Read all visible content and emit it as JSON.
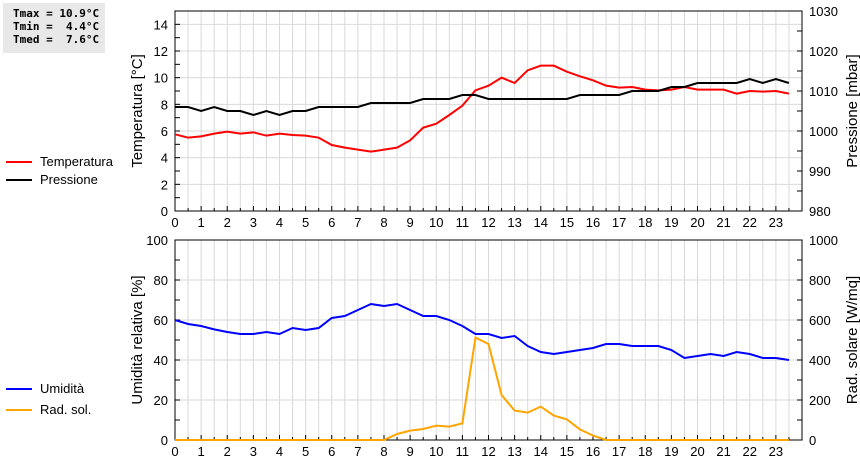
{
  "stats": {
    "tmax": "Tmax = 10.9°C",
    "tmin": "Tmin =  4.4°C",
    "tmed": "Tmed =  7.6°C"
  },
  "chart_data": [
    {
      "type": "line",
      "x": [
        0,
        0.5,
        1,
        1.5,
        2,
        2.5,
        3,
        3.5,
        4,
        4.5,
        5,
        5.5,
        6,
        6.5,
        7,
        7.5,
        8,
        8.5,
        9,
        9.5,
        10,
        10.5,
        11,
        11.5,
        12,
        12.5,
        13,
        13.5,
        14,
        14.5,
        15,
        15.5,
        16,
        16.5,
        17,
        17.5,
        18,
        18.5,
        19,
        19.5,
        20,
        20.5,
        21,
        21.5,
        22,
        22.5,
        23,
        23.5
      ],
      "xticks": [
        "0",
        "1",
        "2",
        "3",
        "4",
        "5",
        "6",
        "7",
        "8",
        "9",
        "10",
        "11",
        "12",
        "13",
        "14",
        "15",
        "16",
        "17",
        "18",
        "19",
        "20",
        "21",
        "22",
        "23"
      ],
      "xlim": [
        0,
        24
      ],
      "ylabel": "Temperatura [°C]",
      "ylim": [
        0,
        15
      ],
      "yticks": [
        "0",
        "2",
        "4",
        "6",
        "8",
        "10",
        "12",
        "14"
      ],
      "y2label": "Pressione [mbar]",
      "y2lim": [
        980,
        1030
      ],
      "y2ticks": [
        "980",
        "990",
        "1000",
        "1010",
        "1020",
        "1030"
      ],
      "grid": true,
      "legend": "left",
      "series": [
        {
          "name": "Temperatura",
          "axis": "left",
          "color": "#ff0000",
          "values": [
            5.75,
            5.5,
            5.6,
            5.8,
            5.95,
            5.8,
            5.9,
            5.65,
            5.8,
            5.7,
            5.65,
            5.5,
            4.95,
            4.75,
            4.6,
            4.45,
            4.6,
            4.75,
            5.3,
            6.25,
            6.55,
            7.2,
            7.9,
            9.05,
            9.4,
            10.0,
            9.6,
            10.55,
            10.9,
            10.9,
            10.45,
            10.1,
            9.8,
            9.4,
            9.25,
            9.3,
            9.1,
            9.05,
            9.1,
            9.3,
            9.1,
            9.1,
            9.1,
            8.8,
            9.0,
            8.95,
            9.0,
            8.8
          ]
        },
        {
          "name": "Pressione",
          "axis": "right",
          "color": "#000000",
          "values": [
            1006,
            1006,
            1005,
            1006,
            1005,
            1005,
            1004,
            1005,
            1004,
            1005,
            1005,
            1006,
            1006,
            1006,
            1006,
            1007,
            1007,
            1007,
            1007,
            1008,
            1008,
            1008,
            1009,
            1009,
            1008,
            1008,
            1008,
            1008,
            1008,
            1008,
            1008,
            1009,
            1009,
            1009,
            1009,
            1010,
            1010,
            1010,
            1011,
            1011,
            1012,
            1012,
            1012,
            1012,
            1013,
            1012,
            1013,
            1012
          ]
        }
      ]
    },
    {
      "type": "line",
      "x": [
        0,
        0.5,
        1,
        1.5,
        2,
        2.5,
        3,
        3.5,
        4,
        4.5,
        5,
        5.5,
        6,
        6.5,
        7,
        7.5,
        8,
        8.5,
        9,
        9.5,
        10,
        10.5,
        11,
        11.5,
        12,
        12.5,
        13,
        13.5,
        14,
        14.5,
        15,
        15.5,
        16,
        16.5,
        17,
        17.5,
        18,
        18.5,
        19,
        19.5,
        20,
        20.5,
        21,
        21.5,
        22,
        22.5,
        23,
        23.5
      ],
      "xticks": [
        "0",
        "1",
        "2",
        "3",
        "4",
        "5",
        "6",
        "7",
        "8",
        "9",
        "10",
        "11",
        "12",
        "13",
        "14",
        "15",
        "16",
        "17",
        "18",
        "19",
        "20",
        "21",
        "22",
        "23"
      ],
      "xlim": [
        0,
        24
      ],
      "ylabel": "Umidità relativa [%]",
      "ylim": [
        0,
        100
      ],
      "yticks": [
        "0",
        "20",
        "40",
        "60",
        "80",
        "100"
      ],
      "y2label": "Rad. solare [W/mq]",
      "y2lim": [
        0,
        1000
      ],
      "y2ticks": [
        "0",
        "200",
        "400",
        "600",
        "800",
        "1000"
      ],
      "grid": true,
      "legend": "left",
      "series": [
        {
          "name": "Umidità",
          "axis": "left",
          "color": "#0000ff",
          "values": [
            60,
            58,
            57,
            55.3,
            54,
            53,
            53,
            54,
            53,
            56,
            55,
            56,
            61,
            62,
            65,
            68,
            67,
            68,
            65,
            62,
            62,
            60,
            57,
            53,
            53,
            51,
            52,
            47,
            44,
            43,
            44,
            45,
            46,
            48,
            48,
            47,
            47,
            47,
            45,
            41,
            42,
            43,
            42,
            44,
            43,
            41,
            41,
            40
          ]
        },
        {
          "name": "Rad. sol.",
          "axis": "right",
          "color": "#ffa500",
          "values": [
            0,
            0,
            0,
            0,
            0,
            0,
            0,
            0,
            0,
            0,
            0,
            0,
            0,
            0,
            0,
            0,
            0,
            30,
            47,
            55,
            72,
            67,
            83,
            512,
            480,
            225,
            147,
            137,
            167,
            122,
            103,
            53,
            22,
            0,
            0,
            0,
            0,
            0,
            0,
            0,
            0,
            0,
            0,
            0,
            0,
            0,
            0,
            0
          ]
        }
      ]
    }
  ]
}
